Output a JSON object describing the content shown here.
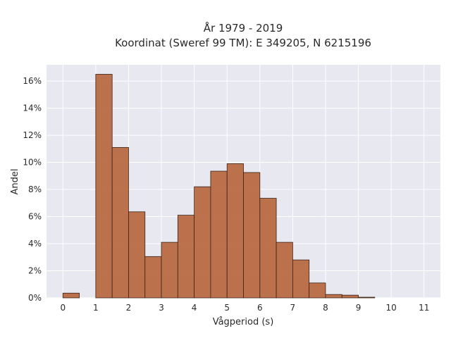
{
  "chart_data": {
    "type": "bar",
    "title_lines": [
      "År 1979 - 2019",
      "Koordinat (Sweref 99 TM): E 349205, N 6215196"
    ],
    "xlabel": "Vågperiod (s)",
    "ylabel": "Andel",
    "xlim": [
      -0.5,
      11.5
    ],
    "ylim": [
      0,
      17.2
    ],
    "x_ticks": [
      "0",
      "1",
      "2",
      "3",
      "4",
      "5",
      "6",
      "7",
      "8",
      "9",
      "10",
      "11"
    ],
    "y_ticks": [
      "0%",
      "2%",
      "4%",
      "6%",
      "8%",
      "10%",
      "12%",
      "14%",
      "16%"
    ],
    "bin_width": 0.5,
    "bins": [
      {
        "start": 0.0,
        "value": 0.35
      },
      {
        "start": 1.0,
        "value": 16.5
      },
      {
        "start": 1.5,
        "value": 11.1
      },
      {
        "start": 2.0,
        "value": 6.35
      },
      {
        "start": 2.5,
        "value": 3.05
      },
      {
        "start": 3.0,
        "value": 4.1
      },
      {
        "start": 3.5,
        "value": 6.1
      },
      {
        "start": 4.0,
        "value": 8.2
      },
      {
        "start": 4.5,
        "value": 9.35
      },
      {
        "start": 5.0,
        "value": 9.9
      },
      {
        "start": 5.5,
        "value": 9.25
      },
      {
        "start": 6.0,
        "value": 7.35
      },
      {
        "start": 6.5,
        "value": 4.1
      },
      {
        "start": 7.0,
        "value": 2.8
      },
      {
        "start": 7.5,
        "value": 1.1
      },
      {
        "start": 8.0,
        "value": 0.25
      },
      {
        "start": 8.5,
        "value": 0.2
      },
      {
        "start": 9.0,
        "value": 0.05
      }
    ],
    "grid": true,
    "colors": {
      "bar_fill": "#b86b42",
      "bar_edge": "#3b2216",
      "plot_bg": "#e8e8f0",
      "grid": "#ffffff"
    }
  }
}
